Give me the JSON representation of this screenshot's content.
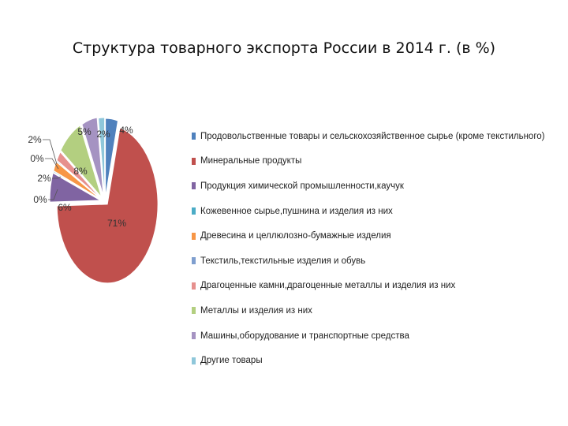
{
  "slide": {
    "title": "Структура товарного экспорта России в 2014 г. (в %)"
  },
  "chart_data": {
    "type": "pie",
    "title": "Структура товарного экспорта России в 2014 г. (в %)",
    "categories": [
      "Продовольственные товары и сельскохозяйственное сырье (кроме текстильного)",
      "Минеральные продукты",
      "Продукция химической промышленности,каучук",
      "Кожевенное сырье,пушнина и изделия из них",
      "Древесина и целлюлозно-бумажные изделия",
      "Текстиль,текстильные изделия и обувь",
      "Драгоценные камни,драгоценные металлы и изделия из них",
      "Металлы и изделия из них",
      "Машины,оборудование и транспортные средства",
      "Другие товары"
    ],
    "values": [
      4,
      71,
      6,
      0,
      2,
      0,
      2,
      8,
      5,
      2
    ],
    "data_labels": [
      "4%",
      "71%",
      "6%",
      "0%",
      "2%",
      "0%",
      "2%",
      "8%",
      "5%",
      "2%"
    ],
    "colors": [
      "#4F81BD",
      "#C0504D",
      "#8064A2",
      "#4BACC6",
      "#F79646",
      "#7F9FCF",
      "#E6908E",
      "#B3CF80",
      "#A593C2",
      "#8FC7DA"
    ],
    "exploded": true,
    "legend_position": "right"
  }
}
